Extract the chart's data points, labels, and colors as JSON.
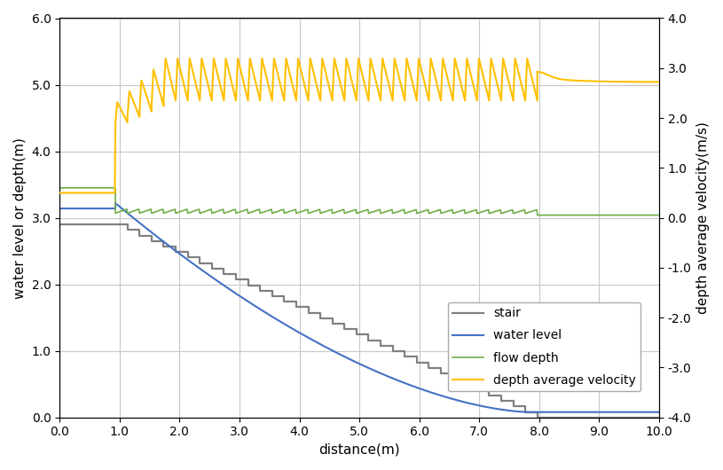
{
  "title": "",
  "xlabel": "distance(m)",
  "ylabel_left": "water level or depth(m)",
  "ylabel_right": "depth average velocity(m/s)",
  "xlim": [
    0.0,
    10.0
  ],
  "ylim_left": [
    0.0,
    6.0
  ],
  "ylim_right": [
    -4.0,
    4.0
  ],
  "stair_color": "#808080",
  "water_color": "#4472C4",
  "depth_color": "#70AD47",
  "velocity_color": "#FFC000",
  "stair_lw": 1.6,
  "water_lw": 1.5,
  "depth_lw": 1.2,
  "velocity_lw": 1.5,
  "grid_color": "#c8c8c8",
  "background_color": "#ffffff",
  "legend_labels": [
    "stair",
    "water level",
    "flow depth",
    "depth average velocity"
  ],
  "n_steps": 35,
  "step_start_x": 0.93,
  "step_end_x": 7.97,
  "step_start_y": 2.9,
  "step_end_y": 0.0
}
